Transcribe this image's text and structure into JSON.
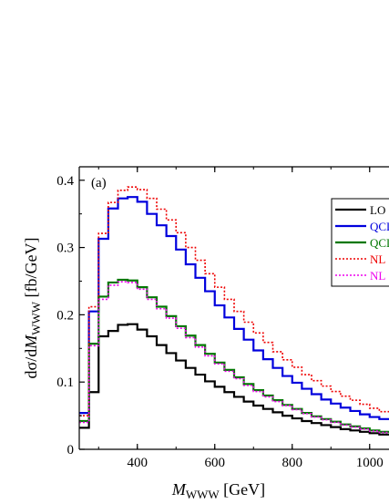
{
  "chart_data": {
    "type": "line",
    "step": true,
    "panel_label": "(a)",
    "xlabel": {
      "main": "M",
      "sub": "WWW",
      "unit": " [GeV]"
    },
    "ylabel": {
      "pre": "dσ/d",
      "main": "M",
      "sub": "WWW",
      "unit": " [fb/GeV]"
    },
    "xlim": [
      250,
      1050
    ],
    "ylim": [
      0,
      0.42
    ],
    "x_ticks": [
      400,
      600,
      800,
      1000
    ],
    "x_tick_labels": [
      "400",
      "600",
      "800",
      "1000"
    ],
    "y_ticks": [
      0,
      0.1,
      0.2,
      0.3,
      0.4
    ],
    "y_tick_labels": [
      "0",
      "0.1",
      "0.2",
      "0.3",
      "0.4"
    ],
    "grid": false,
    "legend_position": "right",
    "bin_edges": [
      250,
      275,
      300,
      325,
      350,
      375,
      400,
      425,
      450,
      475,
      500,
      525,
      550,
      575,
      600,
      625,
      650,
      675,
      700,
      725,
      750,
      775,
      800,
      825,
      850,
      875,
      900,
      925,
      950,
      975,
      1000,
      1025,
      1050
    ],
    "series": [
      {
        "name": "LO",
        "color": "#000000",
        "dash": "solid",
        "values": [
          0.032,
          0.085,
          0.168,
          0.176,
          0.185,
          0.186,
          0.178,
          0.168,
          0.155,
          0.143,
          0.132,
          0.121,
          0.111,
          0.101,
          0.093,
          0.085,
          0.078,
          0.071,
          0.065,
          0.06,
          0.055,
          0.05,
          0.046,
          0.042,
          0.039,
          0.036,
          0.033,
          0.03,
          0.028,
          0.026,
          0.024,
          0.022
        ]
      },
      {
        "name": "QCD",
        "color": "#0000dd",
        "dash": "solid",
        "values": [
          0.054,
          0.205,
          0.313,
          0.358,
          0.373,
          0.375,
          0.368,
          0.35,
          0.333,
          0.317,
          0.297,
          0.275,
          0.255,
          0.235,
          0.214,
          0.196,
          0.179,
          0.163,
          0.147,
          0.134,
          0.121,
          0.109,
          0.099,
          0.09,
          0.082,
          0.074,
          0.068,
          0.062,
          0.057,
          0.052,
          0.048,
          0.045
        ]
      },
      {
        "name": "QCD",
        "color": "#007700",
        "dash": "solid",
        "values": [
          0.042,
          0.157,
          0.227,
          0.248,
          0.252,
          0.251,
          0.241,
          0.226,
          0.212,
          0.198,
          0.183,
          0.169,
          0.155,
          0.142,
          0.129,
          0.118,
          0.107,
          0.097,
          0.088,
          0.08,
          0.073,
          0.066,
          0.06,
          0.054,
          0.049,
          0.045,
          0.041,
          0.037,
          0.034,
          0.031,
          0.028,
          0.026
        ]
      },
      {
        "name": "NL",
        "color": "#ee0000",
        "dash": "dotted",
        "values": [
          0.05,
          0.212,
          0.321,
          0.367,
          0.385,
          0.39,
          0.386,
          0.373,
          0.357,
          0.341,
          0.322,
          0.3,
          0.281,
          0.261,
          0.241,
          0.223,
          0.205,
          0.189,
          0.173,
          0.159,
          0.145,
          0.133,
          0.122,
          0.111,
          0.102,
          0.094,
          0.086,
          0.079,
          0.073,
          0.067,
          0.061,
          0.056
        ]
      },
      {
        "name": "NL",
        "color": "#ee00ee",
        "dash": "dotted",
        "values": [
          0.04,
          0.154,
          0.223,
          0.244,
          0.249,
          0.248,
          0.238,
          0.223,
          0.209,
          0.195,
          0.18,
          0.166,
          0.152,
          0.139,
          0.127,
          0.116,
          0.105,
          0.095,
          0.086,
          0.078,
          0.071,
          0.065,
          0.059,
          0.053,
          0.048,
          0.044,
          0.04,
          0.036,
          0.033,
          0.03,
          0.027,
          0.025
        ]
      }
    ]
  }
}
